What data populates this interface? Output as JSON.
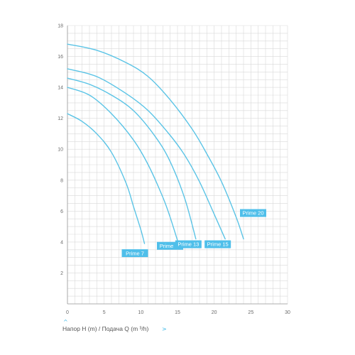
{
  "chart_data": {
    "type": "line",
    "xlabel": "Напор H (m) /  Подача Q (m ³/h)",
    "xlim": [
      0,
      30
    ],
    "ylim": [
      0,
      18
    ],
    "x_ticks": [
      0,
      5,
      10,
      15,
      20,
      25,
      30
    ],
    "y_ticks": [
      2,
      4,
      6,
      8,
      10,
      12,
      14,
      16,
      18
    ],
    "grid": true,
    "line_color": "#5bc4e6",
    "label_bg_color": "#4fbfea",
    "series": [
      {
        "name": "Prime 7",
        "x": [
          0,
          2,
          4,
          6,
          8,
          9,
          10,
          10.5
        ],
        "y": [
          12.3,
          11.8,
          11.0,
          9.8,
          7.8,
          6.3,
          4.8,
          3.9
        ]
      },
      {
        "name": "Prime 11",
        "x": [
          0,
          3,
          6,
          9,
          11,
          13,
          14,
          15
        ],
        "y": [
          14.0,
          13.5,
          12.3,
          10.6,
          9.0,
          6.9,
          5.6,
          4.1
        ]
      },
      {
        "name": "Prime 13",
        "x": [
          0,
          3,
          6,
          9,
          12,
          14,
          16,
          17.5
        ],
        "y": [
          14.6,
          14.2,
          13.5,
          12.5,
          10.8,
          9.2,
          6.8,
          4.2
        ]
      },
      {
        "name": "Prime 15",
        "x": [
          0,
          4,
          8,
          11,
          14,
          16,
          18,
          20,
          21.5
        ],
        "y": [
          15.2,
          14.7,
          13.6,
          12.5,
          10.9,
          9.6,
          7.9,
          5.8,
          4.2
        ]
      },
      {
        "name": "Prime 20",
        "x": [
          0,
          4,
          8,
          11,
          14,
          17,
          19,
          21,
          23,
          24
        ],
        "y": [
          16.8,
          16.4,
          15.6,
          14.7,
          13.2,
          11.3,
          9.7,
          7.9,
          5.6,
          4.2
        ]
      }
    ]
  }
}
